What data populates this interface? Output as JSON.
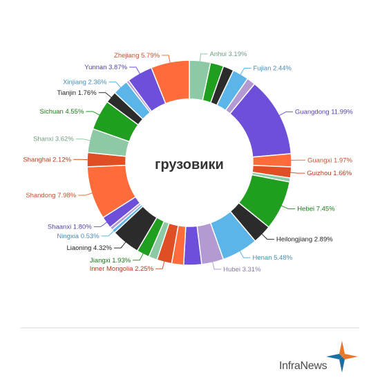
{
  "chart_data": {
    "type": "pie",
    "title": "грузовики",
    "donut": true,
    "start_angle_deg": 0,
    "slices": [
      {
        "label": "Anhui 3.19%",
        "value": 3.19,
        "color": "#8ec9a6"
      },
      {
        "label": "",
        "value": 2.0,
        "color": "#1f9e1f"
      },
      {
        "label": "",
        "value": 1.6,
        "color": "#2b2b2b"
      },
      {
        "label": "Fujian 2.44%",
        "value": 2.44,
        "color": "#5bb5e8"
      },
      {
        "label": "",
        "value": 1.3,
        "color": "#b39ad2"
      },
      {
        "label": "Guangdong 11.99%",
        "value": 11.99,
        "color": "#6e4fd9"
      },
      {
        "label": "Guangxi 1.97%",
        "value": 1.97,
        "color": "#ff6b3a"
      },
      {
        "label": "Guizhou 1.66%",
        "value": 1.66,
        "color": "#e04f24"
      },
      {
        "label": "",
        "value": 0.6,
        "color": "#8ec9a6"
      },
      {
        "label": "Hebei 7.45%",
        "value": 7.45,
        "color": "#1f9e1f"
      },
      {
        "label": "Heilongjiang 2.89%",
        "value": 2.89,
        "color": "#2b2b2b"
      },
      {
        "label": "Henan 5.48%",
        "value": 5.48,
        "color": "#5bb5e8"
      },
      {
        "label": "Hubei 3.31%",
        "value": 3.31,
        "color": "#b39ad2"
      },
      {
        "label": "",
        "value": 2.7,
        "color": "#6e4fd9"
      },
      {
        "label": "",
        "value": 1.8,
        "color": "#ff6b3a"
      },
      {
        "label": "Inner Mongolia 2.25%",
        "value": 2.25,
        "color": "#e04f24"
      },
      {
        "label": "",
        "value": 1.3,
        "color": "#8ec9a6"
      },
      {
        "label": "Jiangxi 1.93%",
        "value": 1.93,
        "color": "#1f9e1f"
      },
      {
        "label": "Liaoning 4.32%",
        "value": 4.32,
        "color": "#2b2b2b"
      },
      {
        "label": "Ningxia 0.53%",
        "value": 0.53,
        "color": "#5bb5e8"
      },
      {
        "label": "",
        "value": 0.5,
        "color": "#b39ad2"
      },
      {
        "label": "Shaanxi 1.80%",
        "value": 1.8,
        "color": "#6e4fd9"
      },
      {
        "label": "Shandong 7.98%",
        "value": 7.98,
        "color": "#ff6b3a"
      },
      {
        "label": "Shanghai 2.12%",
        "value": 2.12,
        "color": "#e04f24"
      },
      {
        "label": "Shanxi 3.62%",
        "value": 3.62,
        "color": "#8ec9a6"
      },
      {
        "label": "Sichuan 4.55%",
        "value": 4.55,
        "color": "#1f9e1f"
      },
      {
        "label": "Tianjin 1.76%",
        "value": 1.76,
        "color": "#2b2b2b"
      },
      {
        "label": "Xinjiang 2.36%",
        "value": 2.36,
        "color": "#5bb5e8"
      },
      {
        "label": "",
        "value": 0.4,
        "color": "#b39ad2"
      },
      {
        "label": "Yunnan 3.87%",
        "value": 3.87,
        "color": "#6e4fd9"
      },
      {
        "label": "Zhejiang 5.79%",
        "value": 5.79,
        "color": "#ff6b3a"
      }
    ]
  },
  "branding": {
    "logo_text": "InfraNews"
  }
}
